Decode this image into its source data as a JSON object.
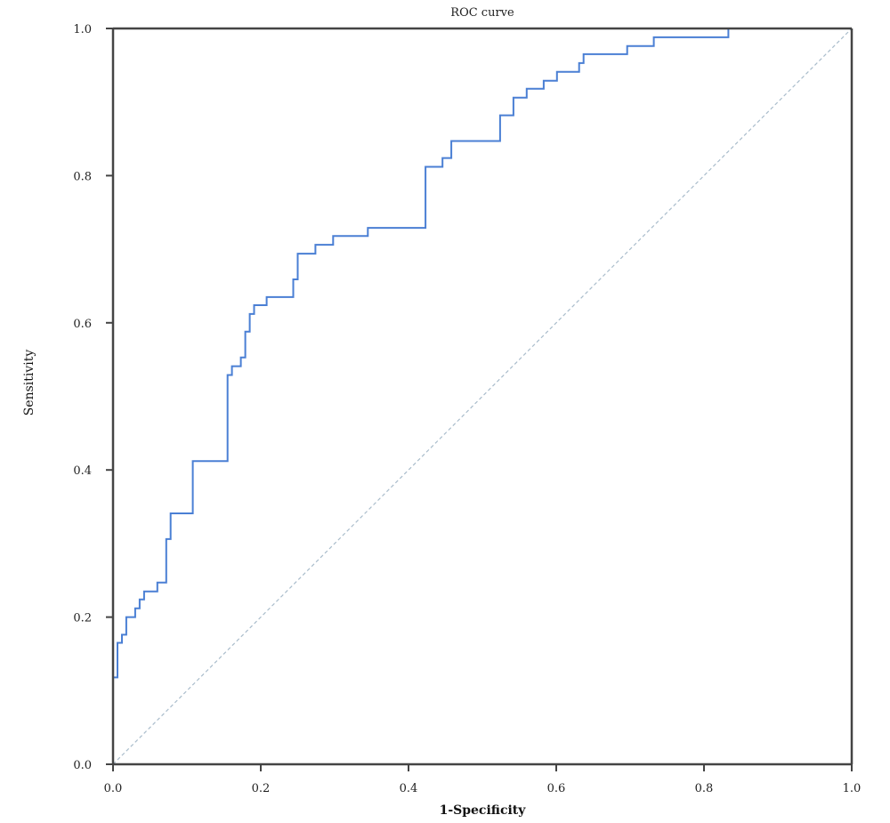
{
  "chart_data": {
    "type": "line",
    "title": "ROC curve",
    "xlabel": "1-Specificity",
    "ylabel": "Sensitivity",
    "xlim": [
      0,
      1
    ],
    "ylim": [
      0,
      1
    ],
    "x_ticks": [
      "0.0",
      "0.2",
      "0.4",
      "0.6",
      "0.8",
      "1.0"
    ],
    "y_ticks": [
      "0.0",
      "0.2",
      "0.4",
      "0.6",
      "0.8",
      "1.0"
    ],
    "grid": false,
    "legend": "none",
    "colors": {
      "curve": "#4a7fd4",
      "reference": "#a9bccb",
      "frame": "#444444"
    },
    "series": [
      {
        "values": [
          [
            0.0,
            0.0
          ],
          [
            0.0,
            0.118
          ],
          [
            0.006,
            0.118
          ],
          [
            0.006,
            0.165
          ],
          [
            0.012,
            0.165
          ],
          [
            0.012,
            0.176
          ],
          [
            0.018,
            0.176
          ],
          [
            0.018,
            0.2
          ],
          [
            0.03,
            0.2
          ],
          [
            0.03,
            0.212
          ],
          [
            0.036,
            0.212
          ],
          [
            0.036,
            0.224
          ],
          [
            0.042,
            0.224
          ],
          [
            0.042,
            0.235
          ],
          [
            0.06,
            0.235
          ],
          [
            0.06,
            0.247
          ],
          [
            0.072,
            0.247
          ],
          [
            0.072,
            0.306
          ],
          [
            0.078,
            0.306
          ],
          [
            0.078,
            0.341
          ],
          [
            0.108,
            0.341
          ],
          [
            0.108,
            0.412
          ],
          [
            0.155,
            0.412
          ],
          [
            0.155,
            0.529
          ],
          [
            0.161,
            0.529
          ],
          [
            0.161,
            0.541
          ],
          [
            0.173,
            0.541
          ],
          [
            0.173,
            0.553
          ],
          [
            0.179,
            0.553
          ],
          [
            0.179,
            0.588
          ],
          [
            0.185,
            0.588
          ],
          [
            0.185,
            0.612
          ],
          [
            0.191,
            0.612
          ],
          [
            0.191,
            0.624
          ],
          [
            0.208,
            0.624
          ],
          [
            0.208,
            0.635
          ],
          [
            0.244,
            0.635
          ],
          [
            0.244,
            0.659
          ],
          [
            0.25,
            0.659
          ],
          [
            0.25,
            0.694
          ],
          [
            0.274,
            0.694
          ],
          [
            0.274,
            0.706
          ],
          [
            0.298,
            0.706
          ],
          [
            0.298,
            0.718
          ],
          [
            0.345,
            0.718
          ],
          [
            0.345,
            0.729
          ],
          [
            0.423,
            0.729
          ],
          [
            0.423,
            0.812
          ],
          [
            0.446,
            0.812
          ],
          [
            0.446,
            0.824
          ],
          [
            0.458,
            0.824
          ],
          [
            0.458,
            0.847
          ],
          [
            0.524,
            0.847
          ],
          [
            0.524,
            0.882
          ],
          [
            0.542,
            0.882
          ],
          [
            0.542,
            0.906
          ],
          [
            0.56,
            0.906
          ],
          [
            0.56,
            0.918
          ],
          [
            0.583,
            0.918
          ],
          [
            0.583,
            0.929
          ],
          [
            0.601,
            0.929
          ],
          [
            0.601,
            0.941
          ],
          [
            0.631,
            0.941
          ],
          [
            0.631,
            0.953
          ],
          [
            0.637,
            0.953
          ],
          [
            0.637,
            0.965
          ],
          [
            0.696,
            0.965
          ],
          [
            0.696,
            0.976
          ],
          [
            0.732,
            0.976
          ],
          [
            0.732,
            0.988
          ],
          [
            0.833,
            0.988
          ],
          [
            0.833,
            1.0
          ],
          [
            1.0,
            1.0
          ]
        ]
      },
      {
        "values": [
          [
            0.0,
            0.0
          ],
          [
            1.0,
            1.0
          ]
        ]
      }
    ]
  }
}
